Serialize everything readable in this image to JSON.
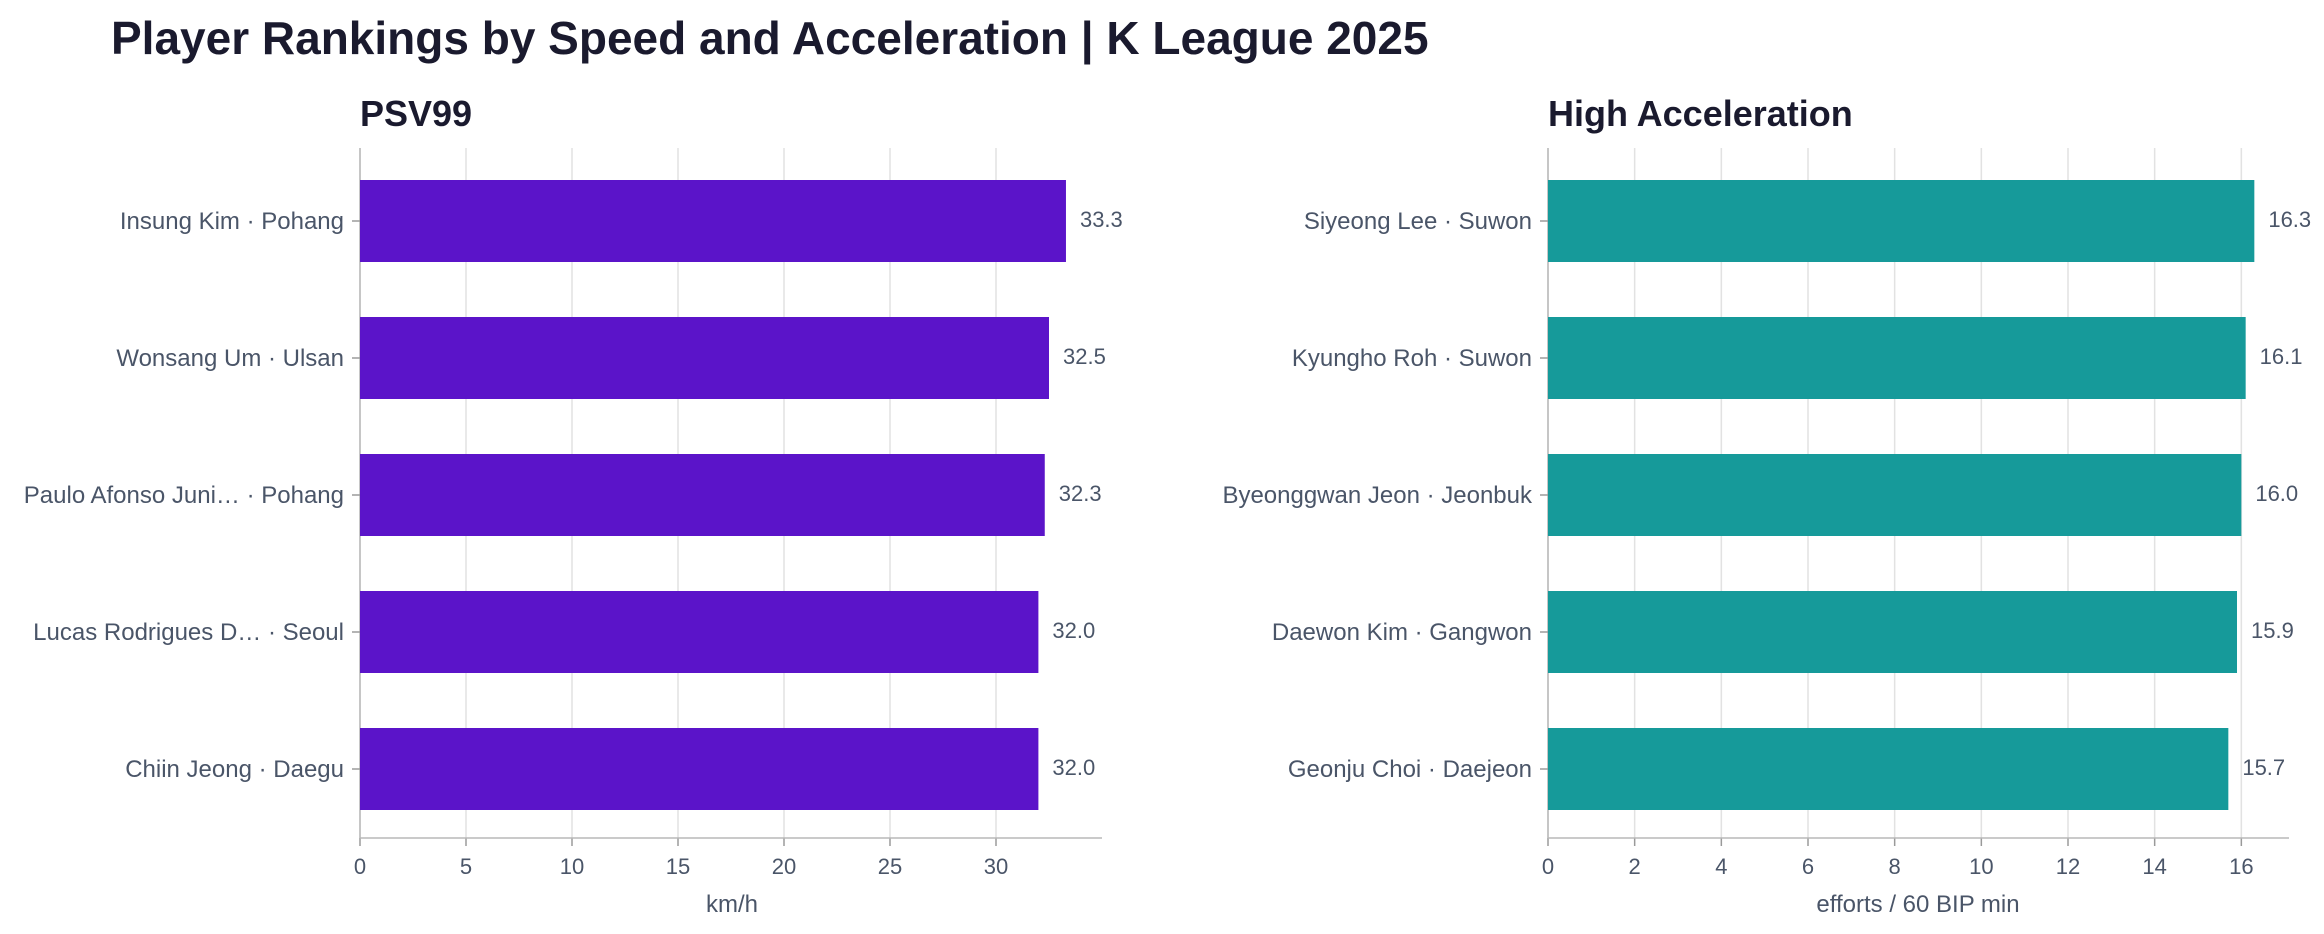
{
  "title": "Player Rankings by Speed and Acceleration | K League 2025",
  "chart_data": [
    {
      "type": "bar",
      "orientation": "horizontal",
      "title": "PSV99",
      "xlabel": "km/h",
      "ylabel": "",
      "xlim": [
        0,
        35
      ],
      "xticks": [
        0,
        5,
        10,
        15,
        20,
        25,
        30
      ],
      "grid": true,
      "color": "#5b14c9",
      "categories": [
        "Insung Kim · Pohang",
        "Wonsang Um · Ulsan",
        "Paulo Afonso Juni… · Pohang",
        "Lucas Rodrigues D… · Seoul",
        "Chiin Jeong · Daegu"
      ],
      "values": [
        33.3,
        32.5,
        32.3,
        32.0,
        32.0
      ],
      "data_labels": [
        "33.3",
        "32.5",
        "32.3",
        "32.0",
        "32.0"
      ]
    },
    {
      "type": "bar",
      "orientation": "horizontal",
      "title": "High Acceleration",
      "xlabel": "efforts / 60 BIP min",
      "ylabel": "",
      "xlim": [
        0,
        17.1
      ],
      "xticks": [
        0,
        2,
        4,
        6,
        8,
        10,
        12,
        14,
        16
      ],
      "grid": true,
      "color": "#169a9a",
      "categories": [
        "Siyeong Lee · Suwon",
        "Kyungho Roh · Suwon",
        "Byeonggwan Jeon · Jeonbuk",
        "Daewon Kim · Gangwon",
        "Geonju Choi · Daejeon"
      ],
      "values": [
        16.3,
        16.1,
        16.0,
        15.9,
        15.7
      ],
      "data_labels": [
        "16.3",
        "16.1",
        "16.0",
        "15.9",
        "15.7"
      ]
    }
  ]
}
